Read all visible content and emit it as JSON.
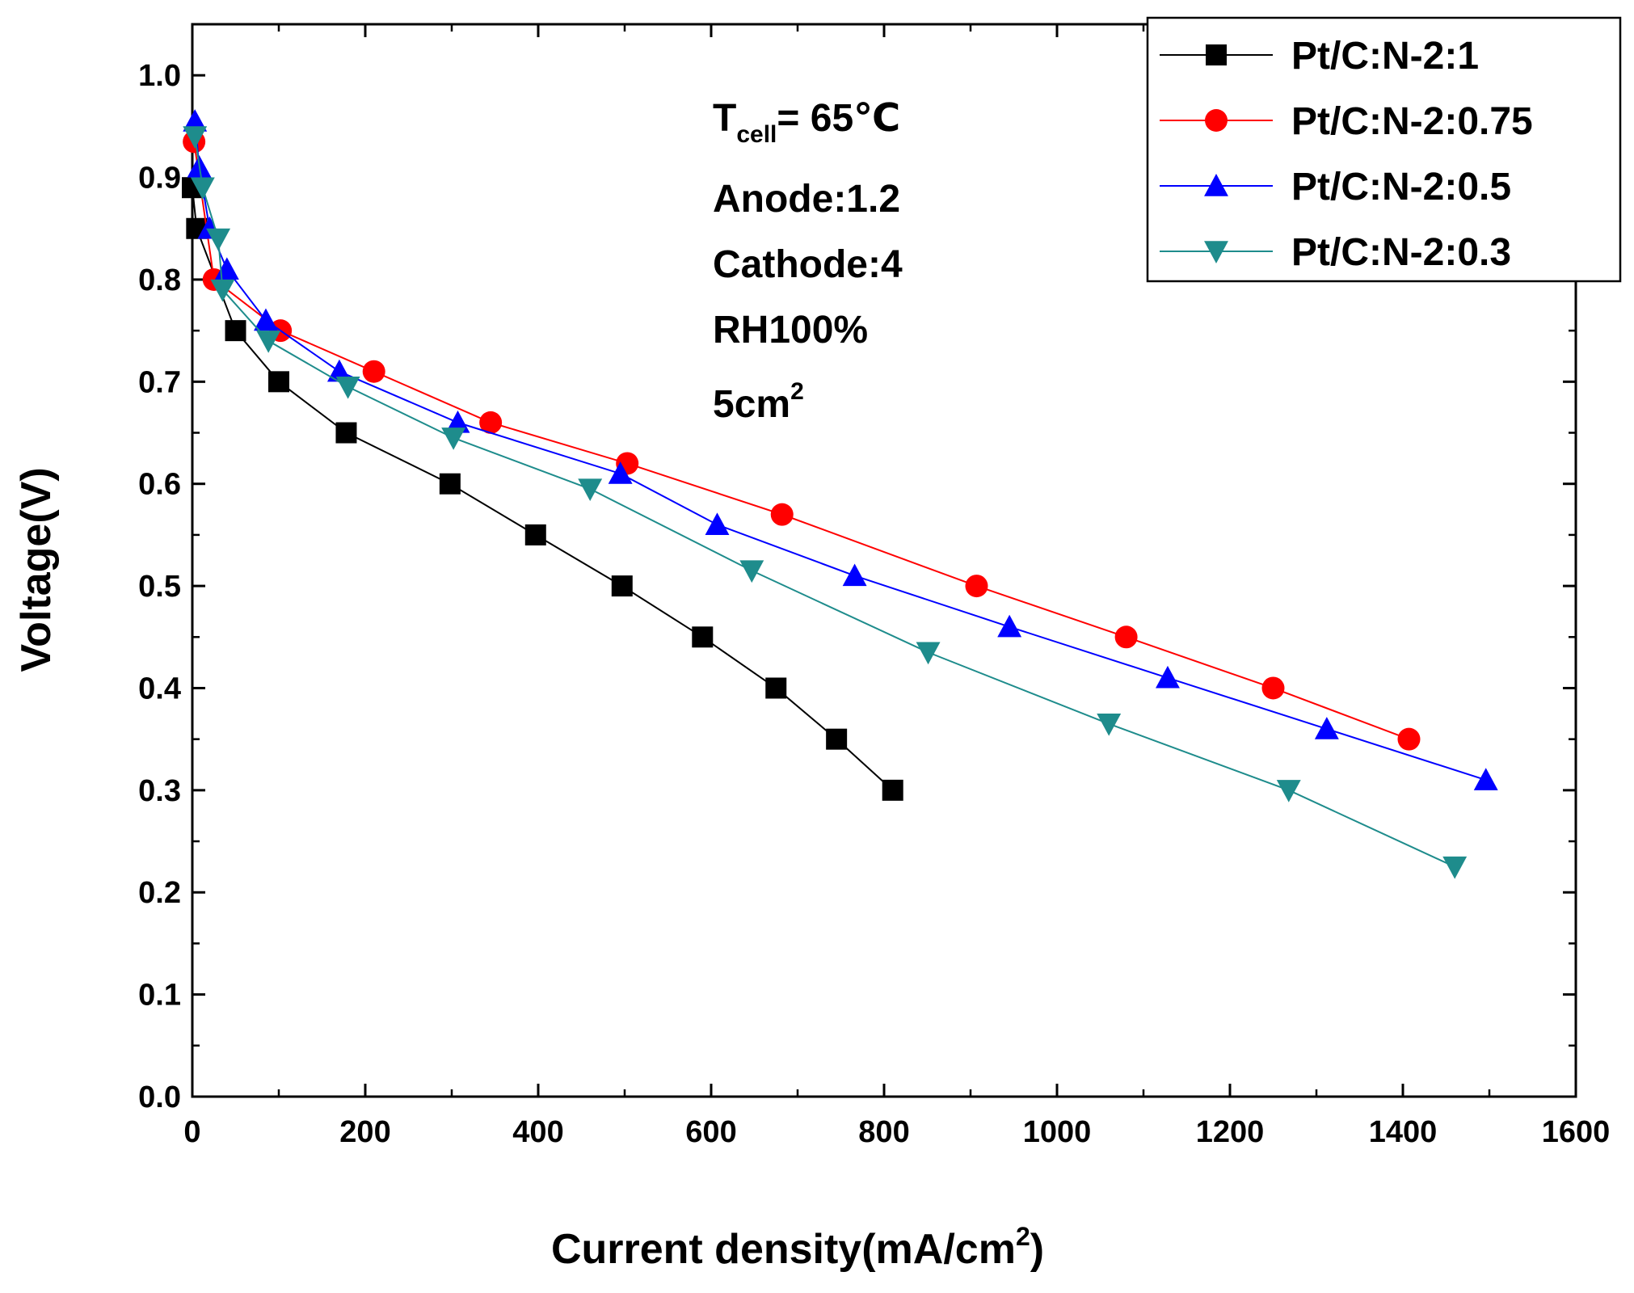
{
  "chart_data": {
    "type": "line",
    "title": "",
    "xlabel": "Current density(mA/cm",
    "xlabel_sup": "2",
    "xlabel_close": ")",
    "ylabel": "Voltage(V)",
    "xlim": [
      0,
      1600
    ],
    "ylim": [
      0,
      1.05
    ],
    "x_ticks": [
      0,
      200,
      400,
      600,
      800,
      1000,
      1200,
      1400,
      1600
    ],
    "x_tick_labels": [
      "0",
      "200",
      "400",
      "600",
      "800",
      "1000",
      "1200",
      "1400",
      "1600"
    ],
    "y_ticks": [
      0.0,
      0.1,
      0.2,
      0.3,
      0.4,
      0.5,
      0.6,
      0.7,
      0.8,
      0.9,
      1.0
    ],
    "y_tick_labels": [
      "0.0",
      "0.1",
      "0.2",
      "0.3",
      "0.4",
      "0.5",
      "0.6",
      "0.7",
      "0.8",
      "0.9",
      "1.0"
    ],
    "grid": false,
    "legend_position": "top-right",
    "annotations": {
      "tcell_main": "T",
      "tcell_sub": "cell",
      "tcell_value": "= 65℃",
      "anode": "Anode:1.2",
      "cathode": "Cathode:4",
      "rh": "RH100%",
      "area_main": "5cm",
      "area_sup": "2"
    },
    "series": [
      {
        "name": "Pt/C:N-2:1",
        "color": "#000000",
        "marker": "square",
        "x": [
          0,
          5,
          50,
          100,
          178,
          298,
          397,
          497,
          590,
          675,
          745,
          810
        ],
        "y": [
          0.89,
          0.85,
          0.75,
          0.7,
          0.65,
          0.6,
          0.55,
          0.5,
          0.45,
          0.4,
          0.35,
          0.3
        ]
      },
      {
        "name": "Pt/C:N-2:0.75",
        "color": "#ff0000",
        "marker": "circle",
        "x": [
          2,
          25,
          102,
          210,
          345,
          503,
          682,
          907,
          1080,
          1250,
          1407
        ],
        "y": [
          0.935,
          0.8,
          0.75,
          0.71,
          0.66,
          0.62,
          0.57,
          0.5,
          0.45,
          0.4,
          0.35
        ]
      },
      {
        "name": "Pt/C:N-2:0.5",
        "color": "#0000ff",
        "marker": "triangle-up",
        "x": [
          3,
          8,
          20,
          40,
          85,
          170,
          307,
          495,
          607,
          766,
          945,
          1128,
          1312,
          1496
        ],
        "y": [
          0.955,
          0.91,
          0.85,
          0.81,
          0.76,
          0.71,
          0.66,
          0.61,
          0.56,
          0.51,
          0.46,
          0.41,
          0.36,
          0.31
        ]
      },
      {
        "name": "Pt/C:N-2:0.3",
        "color": "#1e8c8c",
        "marker": "triangle-down",
        "x": [
          3,
          12,
          30,
          35,
          88,
          180,
          302,
          460,
          647,
          851,
          1060,
          1268,
          1460
        ],
        "y": [
          0.94,
          0.89,
          0.84,
          0.79,
          0.74,
          0.695,
          0.645,
          0.595,
          0.515,
          0.435,
          0.365,
          0.3,
          0.225
        ]
      }
    ]
  }
}
